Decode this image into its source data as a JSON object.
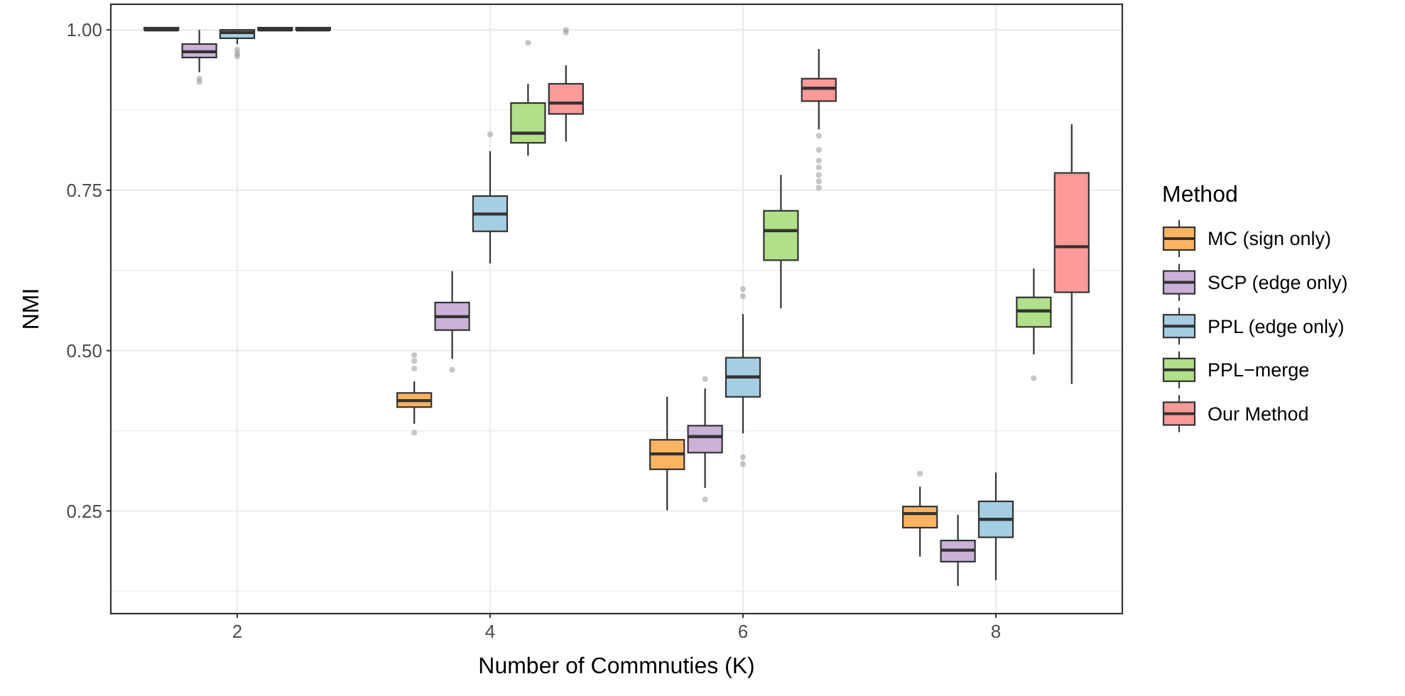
{
  "chart_data": {
    "type": "box",
    "xlabel": "Number of Commnuties (K)",
    "ylabel": "NMI",
    "legend_title": "Method",
    "legend": "right",
    "grid": true,
    "categories": [
      "2",
      "4",
      "6",
      "8"
    ],
    "ylim": [
      0.09,
      1.04
    ],
    "yticks": [
      {
        "value": 0.125,
        "label": null
      },
      {
        "value": 0.25,
        "label": "0.25"
      },
      {
        "value": 0.375,
        "label": null
      },
      {
        "value": 0.5,
        "label": "0.50"
      },
      {
        "value": 0.625,
        "label": null
      },
      {
        "value": 0.75,
        "label": "0.75"
      },
      {
        "value": 0.875,
        "label": null
      },
      {
        "value": 1,
        "label": "1.00"
      }
    ],
    "series": [
      {
        "name": "MC (sign only)",
        "color": "#fdb462",
        "boxes": [
          {
            "low": 1,
            "q1": 1,
            "median": 1,
            "q3": 1,
            "high": 1
          },
          {
            "low": 0.386,
            "q1": 0.412,
            "median": 0.422,
            "q3": 0.434,
            "high": 0.452,
            "outliers": [
              0.493,
              0.484,
              0.472,
              0.372
            ]
          },
          {
            "low": 0.251,
            "q1": 0.315,
            "median": 0.339,
            "q3": 0.361,
            "high": 0.428
          },
          {
            "low": 0.179,
            "q1": 0.224,
            "median": 0.246,
            "q3": 0.257,
            "high": 0.288,
            "outliers": [
              0.308
            ]
          }
        ]
      },
      {
        "name": "SCP (edge only)",
        "color": "#cab2d6",
        "boxes": [
          {
            "low": 0.934,
            "q1": 0.957,
            "median": 0.966,
            "q3": 0.978,
            "high": 1,
            "outliers": [
              0.924,
              0.919
            ]
          },
          {
            "low": 0.487,
            "q1": 0.532,
            "median": 0.553,
            "q3": 0.575,
            "high": 0.624,
            "outliers": [
              0.47
            ]
          },
          {
            "low": 0.286,
            "q1": 0.341,
            "median": 0.366,
            "q3": 0.383,
            "high": 0.441,
            "outliers": [
              0.456,
              0.268
            ]
          },
          {
            "low": 0.133,
            "q1": 0.171,
            "median": 0.189,
            "q3": 0.204,
            "high": 0.244
          }
        ]
      },
      {
        "name": "PPL (edge only)",
        "color": "#a6cee3",
        "boxes": [
          {
            "low": 0.978,
            "q1": 0.987,
            "median": 0.996,
            "q3": 1,
            "high": 1,
            "outliers": [
              0.969,
              0.963,
              0.959
            ]
          },
          {
            "low": 0.636,
            "q1": 0.686,
            "median": 0.713,
            "q3": 0.741,
            "high": 0.811,
            "outliers": [
              0.837
            ]
          },
          {
            "low": 0.371,
            "q1": 0.428,
            "median": 0.459,
            "q3": 0.489,
            "high": 0.557,
            "outliers": [
              0.596,
              0.585,
              0.334,
              0.323
            ]
          },
          {
            "low": 0.142,
            "q1": 0.209,
            "median": 0.237,
            "q3": 0.265,
            "high": 0.31
          }
        ]
      },
      {
        "name": "PPL−merge",
        "color": "#b2df8a",
        "boxes": [
          {
            "low": 1,
            "q1": 1,
            "median": 1,
            "q3": 1,
            "high": 1
          },
          {
            "low": 0.804,
            "q1": 0.824,
            "median": 0.839,
            "q3": 0.886,
            "high": 0.916,
            "outliers": [
              0.98
            ]
          },
          {
            "low": 0.566,
            "q1": 0.641,
            "median": 0.687,
            "q3": 0.718,
            "high": 0.774
          },
          {
            "low": 0.494,
            "q1": 0.537,
            "median": 0.562,
            "q3": 0.583,
            "high": 0.628,
            "outliers": [
              0.457
            ]
          }
        ]
      },
      {
        "name": "Our Method",
        "color": "#fb9a99",
        "boxes": [
          {
            "low": 1,
            "q1": 1,
            "median": 1,
            "q3": 1,
            "high": 1
          },
          {
            "low": 0.826,
            "q1": 0.869,
            "median": 0.886,
            "q3": 0.916,
            "high": 0.945,
            "outliers": [
              1,
              0.996
            ]
          },
          {
            "low": 0.845,
            "q1": 0.889,
            "median": 0.909,
            "q3": 0.924,
            "high": 0.97,
            "outliers": [
              0.835,
              0.813,
              0.796,
              0.786,
              0.774,
              0.764,
              0.754
            ]
          },
          {
            "low": 0.448,
            "q1": 0.591,
            "median": 0.662,
            "q3": 0.777,
            "high": 0.853
          }
        ]
      }
    ]
  }
}
